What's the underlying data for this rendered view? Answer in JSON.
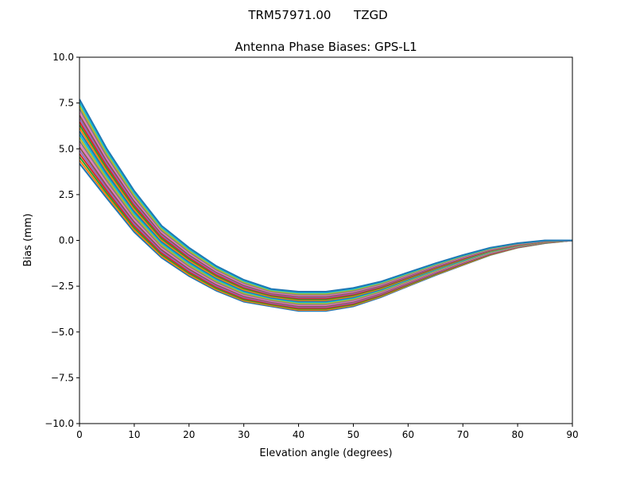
{
  "chart_data": {
    "type": "line",
    "suptitle": "TRM57971.00      TZGD",
    "title": "Antenna Phase Biases: GPS-L1",
    "xlabel": "Elevation angle (degrees)",
    "ylabel": "Bias (mm)",
    "xlim": [
      0,
      90
    ],
    "ylim": [
      -10,
      10
    ],
    "xticks": [
      0,
      10,
      20,
      30,
      40,
      50,
      60,
      70,
      80,
      90
    ],
    "xtick_labels": [
      "0",
      "10",
      "20",
      "30",
      "40",
      "50",
      "60",
      "70",
      "80",
      "90"
    ],
    "yticks": [
      -10,
      -7.5,
      -5,
      -2.5,
      0,
      2.5,
      5,
      7.5,
      10
    ],
    "ytick_labels": [
      "−10.0",
      "−7.5",
      "−5.0",
      "−2.5",
      "0.0",
      "2.5",
      "5.0",
      "7.5",
      "10.0"
    ],
    "grid": false,
    "colors": [
      "#1f77b4",
      "#ff7f0e",
      "#2ca02c",
      "#d62728",
      "#9467bd",
      "#8c564b",
      "#e377c2",
      "#7f7f7f",
      "#bcbd22",
      "#17becf"
    ],
    "x": [
      0,
      5,
      10,
      15,
      20,
      25,
      30,
      35,
      40,
      45,
      50,
      55,
      60,
      65,
      70,
      75,
      80,
      85,
      90
    ],
    "series": [
      {
        "values": [
          4.2,
          2.3,
          0.45,
          -0.95,
          -1.95,
          -2.75,
          -3.35,
          -3.6,
          -3.85,
          -3.85,
          -3.6,
          -3.1,
          -2.5,
          -1.9,
          -1.35,
          -0.8,
          -0.4,
          -0.15,
          0
        ]
      },
      {
        "values": [
          4.9,
          2.84,
          0.9,
          -0.6,
          -1.64,
          -2.48,
          -3.11,
          -3.41,
          -3.64,
          -3.64,
          -3.4,
          -2.93,
          -2.35,
          -1.77,
          -1.24,
          -0.72,
          -0.35,
          -0.12,
          0
        ]
      },
      {
        "values": [
          5.6,
          3.38,
          1.35,
          -0.25,
          -1.33,
          -2.21,
          -2.87,
          -3.22,
          -3.43,
          -3.43,
          -3.2,
          -2.76,
          -2.2,
          -1.64,
          -1.13,
          -0.64,
          -0.3,
          -0.09,
          0
        ]
      },
      {
        "values": [
          6.3,
          3.92,
          1.8,
          0.1,
          -1.02,
          -1.94,
          -2.63,
          -3.03,
          -3.22,
          -3.22,
          -3.0,
          -2.59,
          -2.05,
          -1.51,
          -1.02,
          -0.56,
          -0.25,
          -0.06,
          0
        ]
      },
      {
        "values": [
          7.0,
          4.46,
          2.25,
          0.45,
          -0.71,
          -1.67,
          -2.39,
          -2.84,
          -3.01,
          -3.01,
          -2.8,
          -2.42,
          -1.9,
          -1.38,
          -0.91,
          -0.48,
          -0.2,
          -0.03,
          0
        ]
      },
      {
        "values": [
          7.7,
          5.0,
          2.7,
          0.8,
          -0.4,
          -1.4,
          -2.15,
          -2.65,
          -2.8,
          -2.8,
          -2.6,
          -2.25,
          -1.75,
          -1.25,
          -0.8,
          -0.4,
          -0.15,
          0,
          0
        ]
      }
    ]
  }
}
